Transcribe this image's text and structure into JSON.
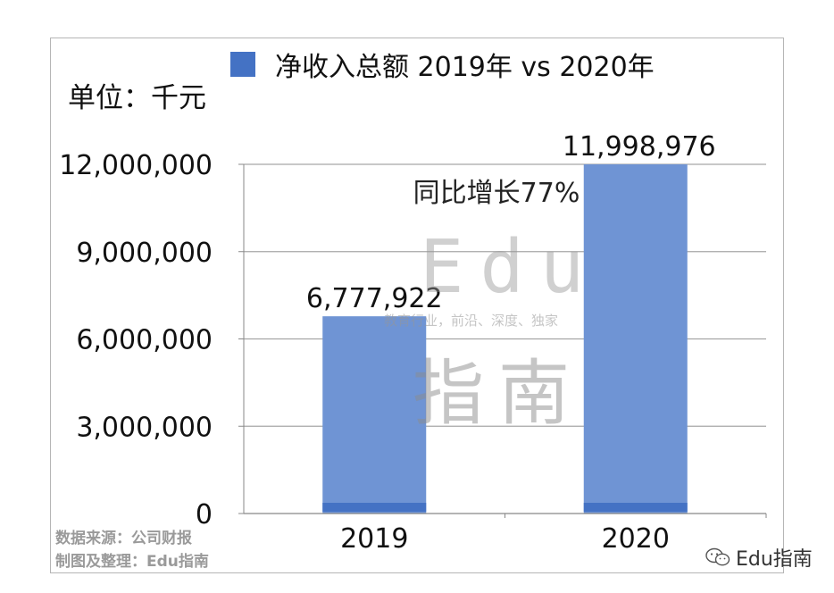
{
  "chart_data": {
    "type": "bar",
    "categories": [
      "2019",
      "2020"
    ],
    "values": [
      6777922,
      11998976
    ],
    "value_labels": [
      "6,777,922",
      "11,998,976"
    ],
    "ylim": [
      0,
      12000000
    ],
    "yticks": [
      0,
      3000000,
      6000000,
      9000000,
      12000000
    ],
    "ytick_labels": [
      "0",
      "3,000,000",
      "6,000,000",
      "9,000,000",
      "12,000,000"
    ],
    "legend": "净收入总额 2019年 vs 2020年",
    "legend_position": "top",
    "unit_label": "单位：千元",
    "annotation": "同比增长77%",
    "bar_color": "#6f94d4",
    "bar_base_color": "#4472c4",
    "legend_color": "#4472c4",
    "grid": true
  },
  "footer": {
    "source": "数据来源：公司财报",
    "author": "制图及整理：Edu指南"
  },
  "watermark": {
    "en": "Edu",
    "sub": "教育行业，前沿、深度、独家",
    "cn": "指南"
  },
  "brand": {
    "icon": "wechat-icon",
    "name": "Edu指南"
  }
}
